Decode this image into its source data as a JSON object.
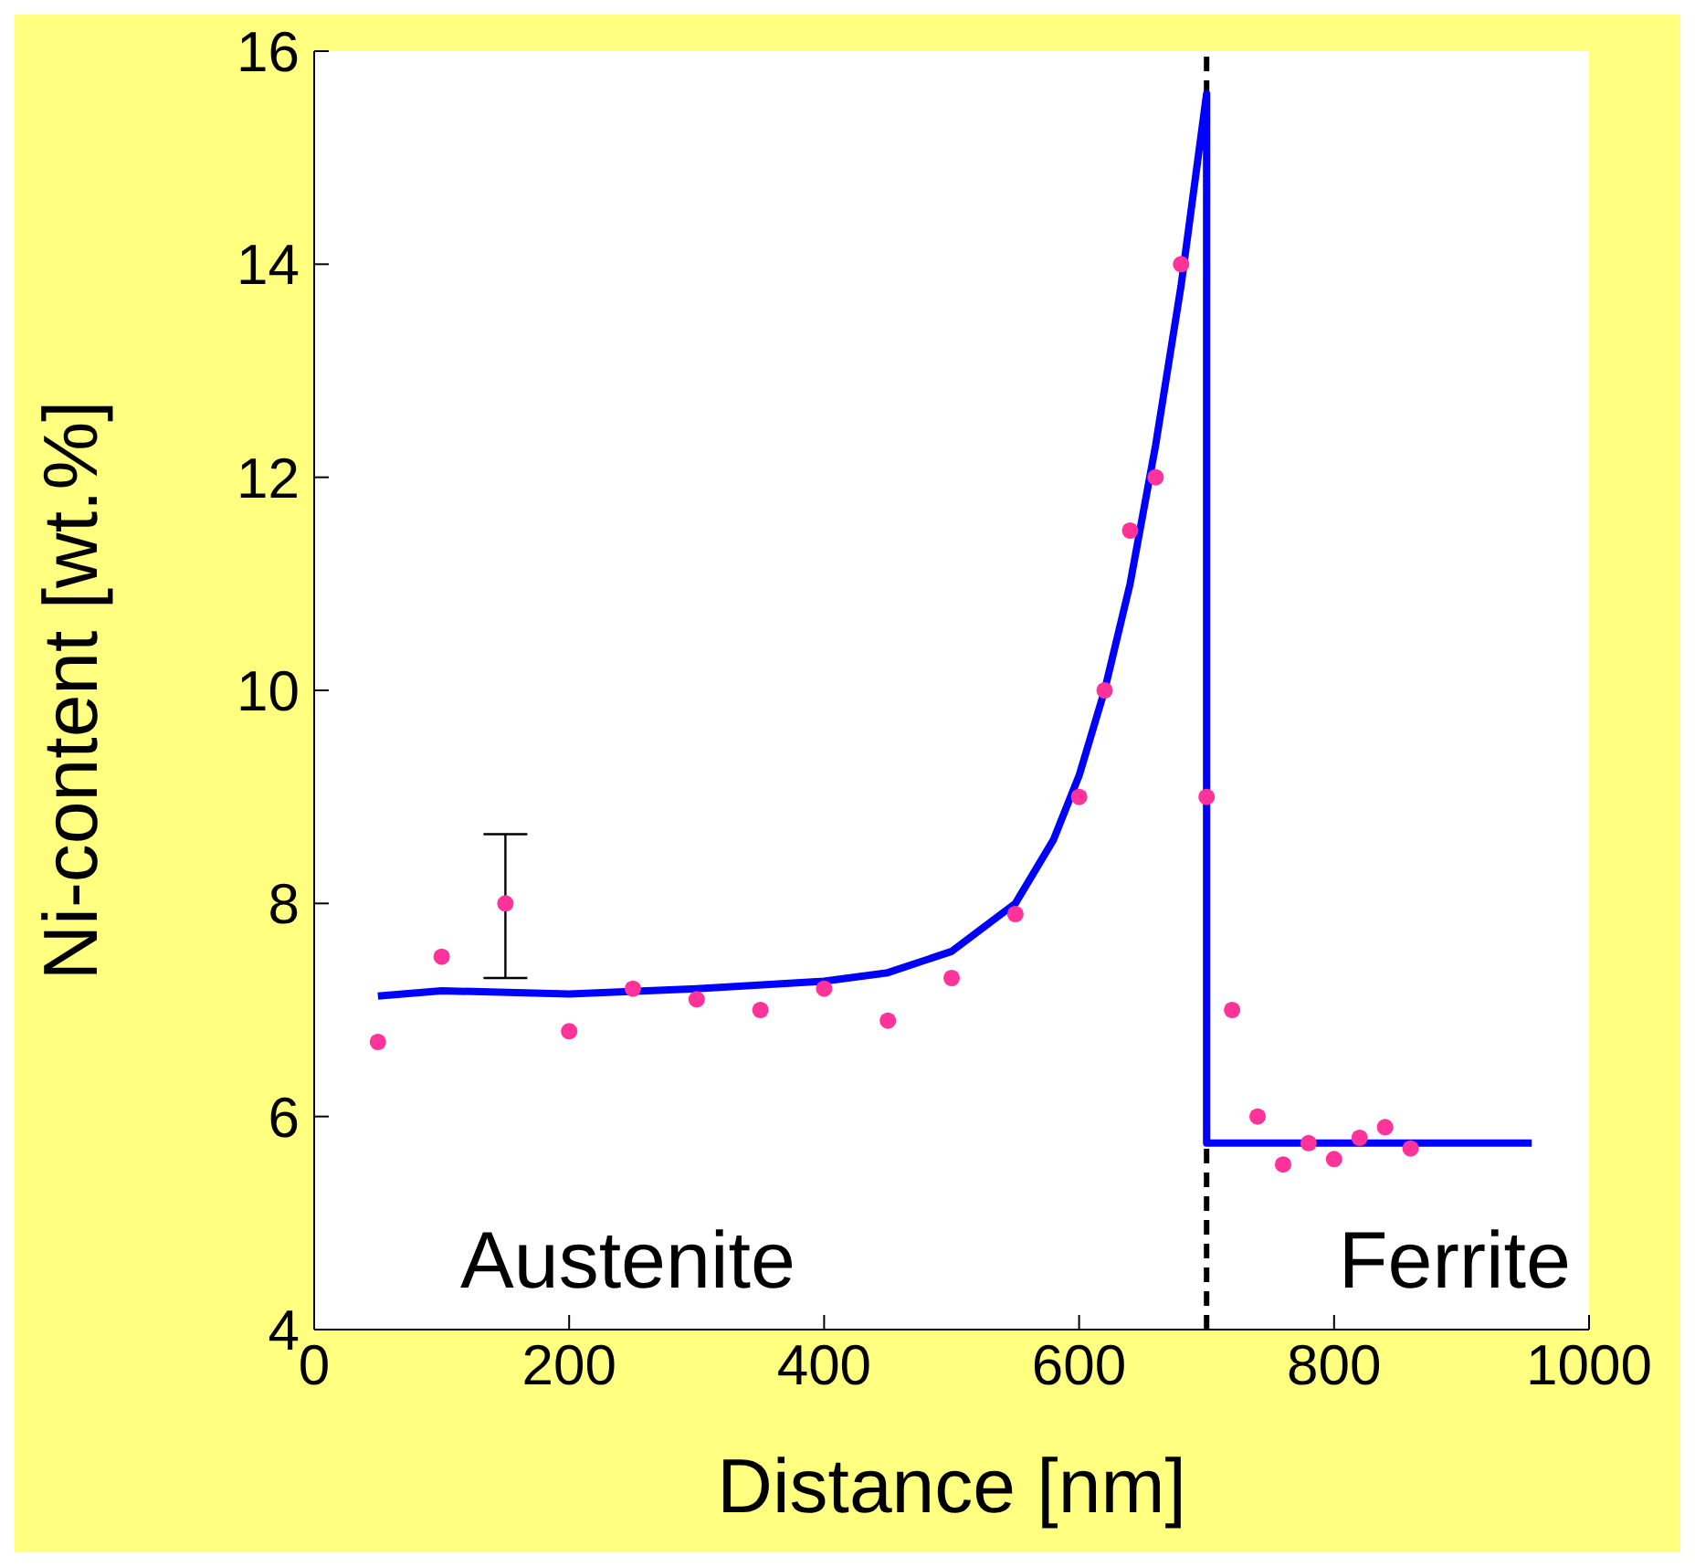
{
  "chart_data": {
    "type": "scatter",
    "xlabel": "Distance [nm]",
    "ylabel": "Ni-content [wt.%]",
    "xlim": [
      0,
      1000
    ],
    "xticks": [
      0,
      200,
      400,
      600,
      800,
      1000
    ],
    "ylim": [
      4,
      16
    ],
    "yticks": [
      4,
      6,
      8,
      10,
      12,
      14,
      16
    ],
    "grid": false,
    "marker": "circle",
    "series": [
      {
        "color": "#ff3399",
        "x": [
          50,
          100,
          150,
          200,
          250,
          300,
          350,
          400,
          450,
          500,
          550,
          600,
          620,
          640,
          660,
          680,
          700,
          720,
          740,
          760,
          780,
          800,
          820,
          840,
          860
        ],
        "values": [
          6.7,
          7.5,
          8.0,
          6.8,
          7.2,
          7.1,
          7.0,
          7.2,
          6.9,
          7.3,
          7.9,
          9.0,
          10.0,
          11.5,
          12.0,
          14.0,
          9.0,
          7.0,
          6.0,
          5.55,
          5.75,
          5.6,
          5.8,
          5.9,
          5.7
        ],
        "errors": [
          null,
          null,
          [
            7.3,
            8.65
          ],
          null,
          null,
          null,
          null,
          null,
          null,
          null,
          null,
          null,
          null,
          null,
          null,
          null,
          null,
          null,
          null,
          null,
          null,
          null,
          null,
          null,
          null
        ]
      },
      {
        "type": "line",
        "color": "#0000ff",
        "line_style": "solid",
        "marker": "none",
        "x": [
          50,
          100,
          200,
          300,
          400,
          450,
          500,
          550,
          580,
          600,
          620,
          640,
          660,
          680,
          700,
          700,
          955
        ],
        "values": [
          7.13,
          7.18,
          7.15,
          7.2,
          7.27,
          7.35,
          7.55,
          8.0,
          8.6,
          9.2,
          10.0,
          11.0,
          12.3,
          13.8,
          15.6,
          5.75,
          5.75
        ]
      }
    ],
    "ref_lines": [
      {
        "axis": "x",
        "value": 700,
        "color": "#000000",
        "line_style": "dashed"
      }
    ],
    "annotations": [
      "Austenite",
      "Ferrite"
    ]
  }
}
